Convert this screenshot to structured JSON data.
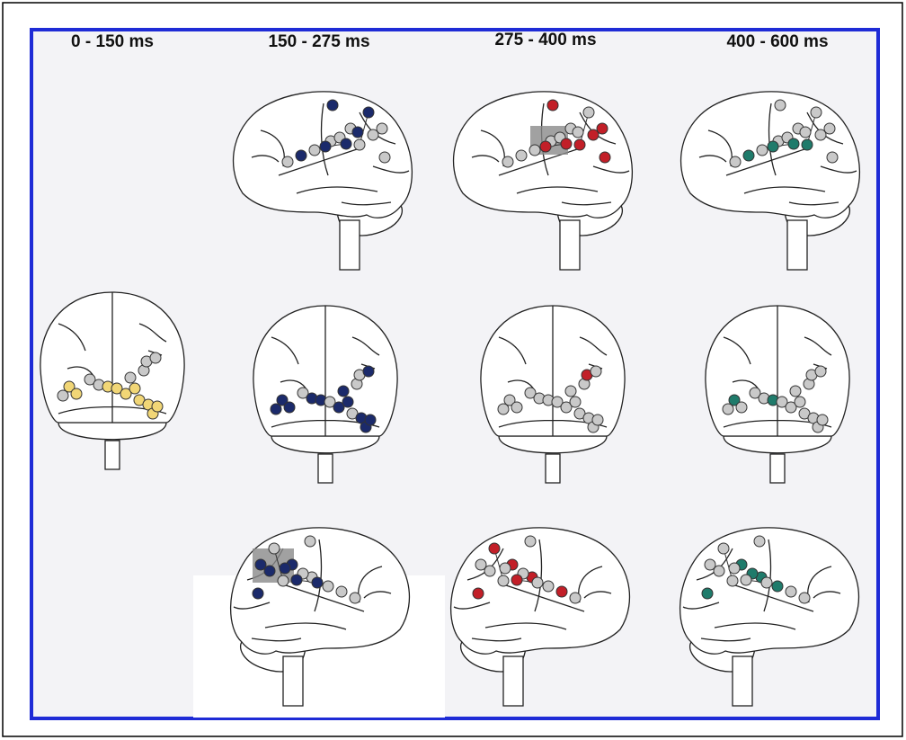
{
  "headers": [
    "0 - 150 ms",
    "150 - 275 ms",
    "275 - 400 ms",
    "400 - 600 ms"
  ]
}
